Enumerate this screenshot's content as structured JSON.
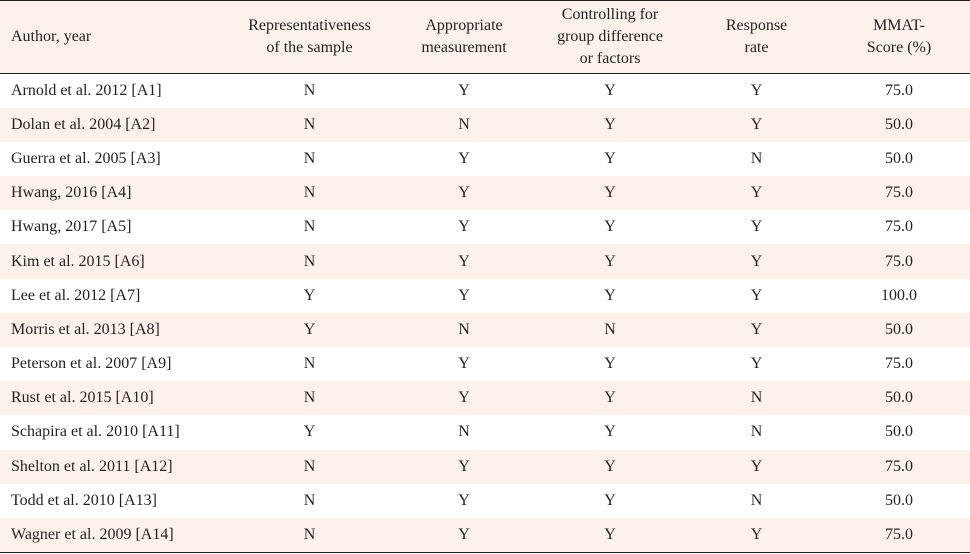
{
  "table": {
    "headers": [
      {
        "lines": [
          "Author, year"
        ]
      },
      {
        "lines": [
          "Representativeness",
          "of the sample"
        ]
      },
      {
        "lines": [
          "Appropriate",
          "measurement"
        ]
      },
      {
        "lines": [
          "Controlling for",
          "group difference",
          "or factors"
        ]
      },
      {
        "lines": [
          "Response",
          "rate"
        ]
      },
      {
        "lines": [
          "MMAT-",
          "Score (%)"
        ]
      }
    ],
    "rows": [
      [
        "Arnold et al. 2012 [A1]",
        "N",
        "Y",
        "Y",
        "Y",
        "75.0"
      ],
      [
        "Dolan et al. 2004 [A2]",
        "N",
        "N",
        "Y",
        "Y",
        "50.0"
      ],
      [
        "Guerra et al. 2005 [A3]",
        "N",
        "Y",
        "Y",
        "N",
        "50.0"
      ],
      [
        "Hwang, 2016 [A4]",
        "N",
        "Y",
        "Y",
        "Y",
        "75.0"
      ],
      [
        "Hwang, 2017 [A5]",
        "N",
        "Y",
        "Y",
        "Y",
        "75.0"
      ],
      [
        "Kim et al. 2015 [A6]",
        "N",
        "Y",
        "Y",
        "Y",
        "75.0"
      ],
      [
        "Lee et al. 2012 [A7]",
        "Y",
        "Y",
        "Y",
        "Y",
        "100.0"
      ],
      [
        "Morris et al. 2013 [A8]",
        "Y",
        "N",
        "N",
        "Y",
        "50.0"
      ],
      [
        "Peterson et al. 2007 [A9]",
        "N",
        "Y",
        "Y",
        "Y",
        "75.0"
      ],
      [
        "Rust et al. 2015 [A10]",
        "N",
        "Y",
        "Y",
        "N",
        "50.0"
      ],
      [
        "Schapira et al. 2010 [A11]",
        "Y",
        "N",
        "Y",
        "N",
        "50.0"
      ],
      [
        "Shelton et al. 2011 [A12]",
        "N",
        "Y",
        "Y",
        "Y",
        "75.0"
      ],
      [
        "Todd et al. 2010 [A13]",
        "N",
        "Y",
        "Y",
        "N",
        "50.0"
      ],
      [
        "Wagner et al. 2009 [A14]",
        "N",
        "Y",
        "Y",
        "Y",
        "75.0"
      ]
    ]
  }
}
